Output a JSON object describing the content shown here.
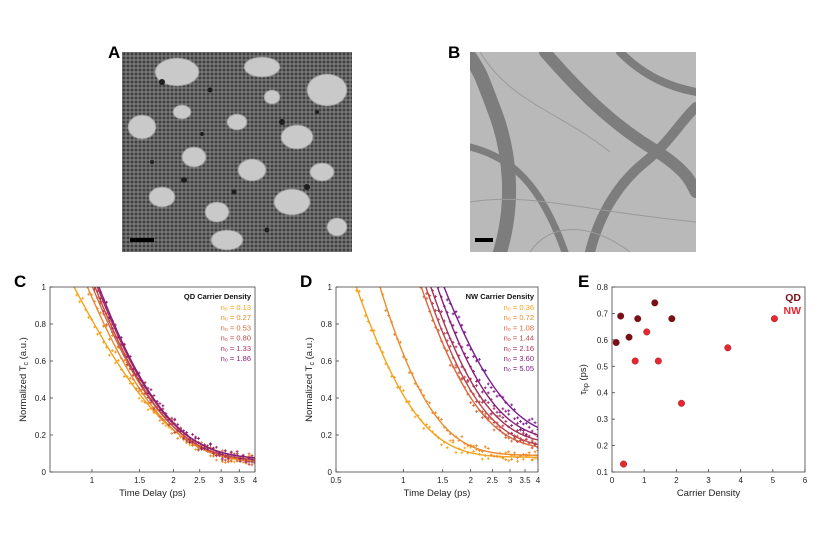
{
  "panels": {
    "A": "A",
    "B": "B",
    "C": "C",
    "D": "D",
    "E": "E"
  },
  "colors": {
    "tem_a_bg": "#8f8f8f",
    "tem_b_bg": "#b9b9b9",
    "qd_dark": "#7a1016",
    "nw_red": "#e8262e"
  },
  "chart_data": [
    {
      "id": "C",
      "type": "line",
      "xlabel": "Time Delay (ps)",
      "ylabel": "Normalized T",
      "ylabel_sub": "c",
      "ylabel_suffix": " (a.u.)",
      "xscale": "log",
      "xlim": [
        0.7,
        4.0
      ],
      "ylim": [
        0,
        1
      ],
      "xticks": [
        1,
        1.5,
        2,
        2.5,
        3,
        3.5,
        4
      ],
      "xtick_labels": [
        "1",
        "1.5",
        "2",
        "2.5",
        "3",
        "3.5",
        "4"
      ],
      "yticks": [
        0,
        0.2,
        0.4,
        0.6,
        0.8,
        1
      ],
      "ytick_labels": [
        "0",
        "0.2",
        "0.4",
        "0.6",
        "0.8",
        "1"
      ],
      "legend_title": "QD Carrier Density",
      "legend_position": "top-right",
      "series": [
        {
          "label": "n₀ = 0.13",
          "color": "#f5a31a",
          "y0": 1.2,
          "tau": 0.68,
          "offset": 0.05
        },
        {
          "label": "n₀ = 0.27",
          "color": "#ec8a2a",
          "y0": 1.45,
          "tau": 0.62,
          "offset": 0.05
        },
        {
          "label": "n₀ = 0.53",
          "color": "#d8683a",
          "y0": 1.55,
          "tau": 0.61,
          "offset": 0.06
        },
        {
          "label": "n₀ = 0.80",
          "color": "#c0474a",
          "y0": 1.62,
          "tau": 0.6,
          "offset": 0.06
        },
        {
          "label": "n₀ = 1.33",
          "color": "#a5315b",
          "y0": 1.66,
          "tau": 0.6,
          "offset": 0.07
        },
        {
          "label": "n₀ = 1.86",
          "color": "#8a1f7a",
          "y0": 1.7,
          "tau": 0.6,
          "offset": 0.07
        }
      ]
    },
    {
      "id": "D",
      "type": "line",
      "xlabel": "Time Delay (ps)",
      "ylabel": "Normalized T",
      "ylabel_sub": "c",
      "ylabel_suffix": " (a.u.)",
      "xscale": "log",
      "xlim": [
        0.5,
        4.0
      ],
      "ylim": [
        0,
        1
      ],
      "xticks": [
        0.5,
        1,
        1.5,
        2,
        2.5,
        3,
        3.5,
        4
      ],
      "xtick_labels": [
        "0.5",
        "1",
        "1.5",
        "2",
        "2.5",
        "3",
        "3.5",
        "4"
      ],
      "yticks": [
        0,
        0.2,
        0.4,
        0.6,
        0.8,
        1
      ],
      "ytick_labels": [
        "0",
        "0.2",
        "0.4",
        "0.6",
        "0.8",
        "1"
      ],
      "legend_title": "NW Carrier Density",
      "legend_position": "top-right",
      "series": [
        {
          "label": "n₀ = 0.36",
          "color": "#f5a31a",
          "y0": 1.25,
          "tau": 0.38,
          "offset": 0.08
        },
        {
          "label": "n₀ = 0.72",
          "color": "#ec8a2a",
          "y0": 1.8,
          "tau": 0.42,
          "offset": 0.09
        },
        {
          "label": "n₀ = 1.08",
          "color": "#d8683a",
          "y0": 2.4,
          "tau": 0.7,
          "offset": 0.12
        },
        {
          "label": "n₀ = 1.44",
          "color": "#c0474a",
          "y0": 2.5,
          "tau": 0.72,
          "offset": 0.13
        },
        {
          "label": "n₀ = 2.16",
          "color": "#a5315b",
          "y0": 2.6,
          "tau": 0.74,
          "offset": 0.15
        },
        {
          "label": "n₀ = 3.60",
          "color": "#8a1f7a",
          "y0": 2.7,
          "tau": 0.78,
          "offset": 0.17
        },
        {
          "label": "n₀ = 5.05",
          "color": "#7a1a8e",
          "y0": 2.4,
          "tau": 0.95,
          "offset": 0.18
        }
      ]
    },
    {
      "id": "E",
      "type": "scatter",
      "xlabel": "Carrier Density",
      "ylabel": "τ",
      "ylabel_sub": "hp",
      "ylabel_suffix": " (ps)",
      "xlim": [
        0,
        6
      ],
      "ylim": [
        0.1,
        0.8
      ],
      "xticks": [
        0,
        1,
        2,
        3,
        4,
        5,
        6
      ],
      "xtick_labels": [
        "0",
        "1",
        "2",
        "3",
        "4",
        "5",
        "6"
      ],
      "yticks": [
        0.1,
        0.2,
        0.3,
        0.4,
        0.5,
        0.6,
        0.7,
        0.8
      ],
      "ytick_labels": [
        "0.1",
        "0.2",
        "0.3",
        "0.4",
        "0.5",
        "0.6",
        "0.7",
        "0.8"
      ],
      "legend_position": "top-right",
      "series": [
        {
          "name": "QD",
          "color": "#7a1016",
          "x": [
            0.13,
            0.27,
            0.53,
            0.8,
            1.33,
            1.86
          ],
          "y": [
            0.59,
            0.69,
            0.61,
            0.68,
            0.74,
            0.68
          ]
        },
        {
          "name": "NW",
          "color": "#e8262e",
          "x": [
            0.36,
            0.72,
            1.08,
            1.44,
            2.16,
            3.6,
            5.05
          ],
          "y": [
            0.13,
            0.52,
            0.63,
            0.52,
            0.36,
            0.57,
            0.68
          ]
        }
      ]
    }
  ]
}
